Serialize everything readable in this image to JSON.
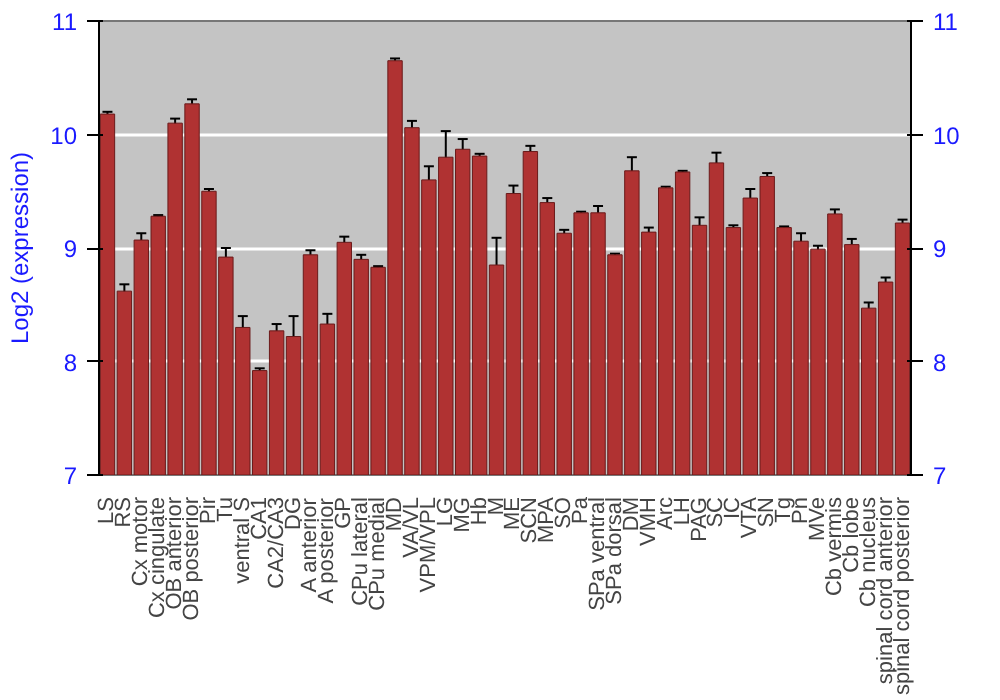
{
  "chart_data": {
    "type": "bar",
    "ylabel": "Log2 (expression)",
    "categories": [
      "LS",
      "RS",
      "Cx motor",
      "Cx cingulate",
      "OB anterior",
      "OB posterior",
      "Pir",
      "Tu",
      "ventral S",
      "CA1",
      "CA2/CA3",
      "DG",
      "A anterior",
      "A posterior",
      "GP",
      "CPu lateral",
      "CPu medial",
      "MD",
      "VA/VL",
      "VPM/VPL",
      "LG",
      "MG",
      "Hb",
      "M",
      "ME",
      "SCN",
      "MPA",
      "SO",
      "Pa",
      "SPa ventral",
      "SPa dorsal",
      "DM",
      "VMH",
      "Arc",
      "LH",
      "PAG",
      "SC",
      "IC",
      "VTA",
      "SN",
      "Tg",
      "Pn",
      "MVe",
      "Cb vermis",
      "Cb lobe",
      "Cb nucleus",
      "spinal cord anterior",
      "spinal cord posterior"
    ],
    "values": [
      10.18,
      8.62,
      9.07,
      9.28,
      10.1,
      10.27,
      9.5,
      8.92,
      8.3,
      7.92,
      8.27,
      8.22,
      8.94,
      8.33,
      9.05,
      8.9,
      8.83,
      10.65,
      10.06,
      9.6,
      9.8,
      9.87,
      9.81,
      8.85,
      9.48,
      9.85,
      9.4,
      9.13,
      9.31,
      9.31,
      8.94,
      9.68,
      9.14,
      9.53,
      9.67,
      9.2,
      9.75,
      9.18,
      9.44,
      9.63,
      9.18,
      9.06,
      8.99,
      9.3,
      9.03,
      8.47,
      8.7,
      9.22
    ],
    "errors": [
      0.02,
      0.06,
      0.06,
      0.01,
      0.04,
      0.04,
      0.02,
      0.08,
      0.1,
      0.02,
      0.06,
      0.18,
      0.04,
      0.09,
      0.05,
      0.04,
      0.01,
      0.02,
      0.06,
      0.12,
      0.23,
      0.09,
      0.02,
      0.24,
      0.07,
      0.05,
      0.04,
      0.03,
      0.01,
      0.06,
      0.01,
      0.12,
      0.04,
      0.01,
      0.01,
      0.07,
      0.09,
      0.02,
      0.08,
      0.03,
      0.01,
      0.07,
      0.03,
      0.04,
      0.05,
      0.05,
      0.04,
      0.03
    ],
    "color": "#b03232",
    "ylim": [
      7,
      11
    ],
    "yticks": [
      7,
      8,
      9,
      10,
      11
    ],
    "y2lim": [
      7,
      11
    ],
    "y2ticks": [
      7,
      8,
      9,
      10,
      11
    ],
    "grid": "y"
  }
}
